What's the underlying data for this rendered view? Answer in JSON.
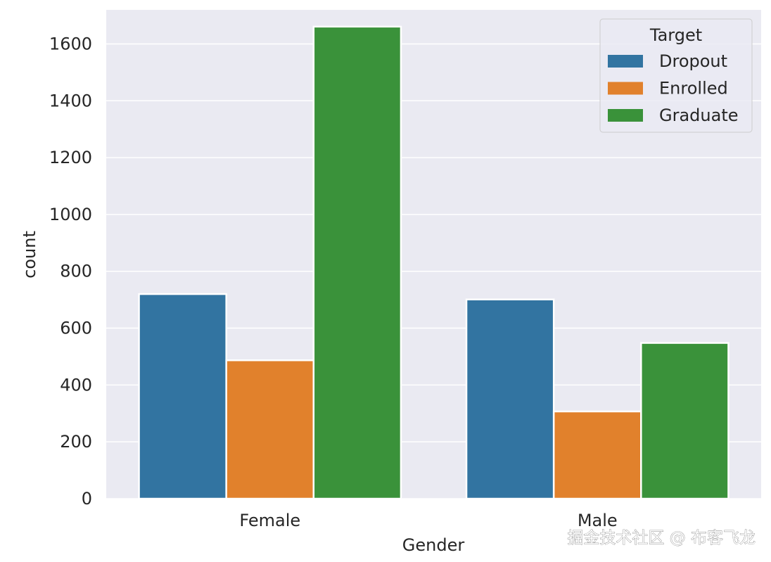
{
  "chart_data": {
    "type": "bar",
    "categories": [
      "Female",
      "Male"
    ],
    "series": [
      {
        "name": "Dropout",
        "values": [
          720,
          701
        ]
      },
      {
        "name": "Enrolled",
        "values": [
          487,
          307
        ]
      },
      {
        "name": "Graduate",
        "values": [
          1661,
          548
        ]
      }
    ],
    "colors": [
      "#3274a1",
      "#e1812c",
      "#3a923a"
    ],
    "xlabel": "Gender",
    "ylabel": "count",
    "ylim": [
      0,
      1720
    ],
    "yticks": [
      0,
      200,
      400,
      600,
      800,
      1000,
      1200,
      1400,
      1600
    ],
    "grid": true,
    "legend": {
      "title": "Target",
      "placement": "top-right"
    }
  },
  "watermark": "掘金技术社区 @ 布客飞龙"
}
